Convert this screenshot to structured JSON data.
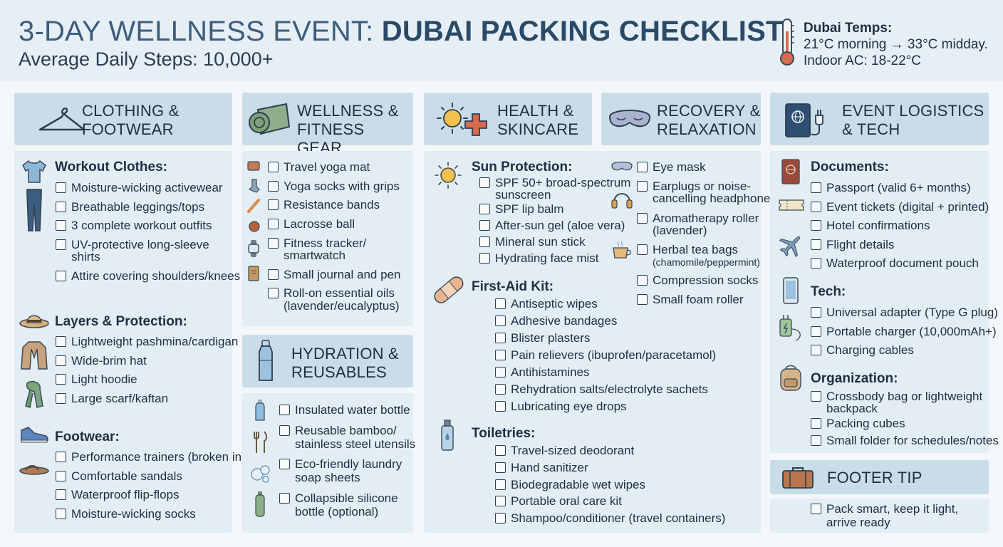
{
  "header": {
    "title_regular": "3-DAY WELLNESS EVENT: ",
    "title_bold": "DUBAI PACKING CHECKLIST",
    "subtitle": "Average Daily Steps: 10,000+",
    "temps_label": "Dubai Temps:",
    "temps_line1": "21°C morning → 33°C midday.",
    "temps_line2": "Indoor AC: 18-22°C"
  },
  "clothing": {
    "header_line1": "CLOTHING &",
    "header_line2": "FOOTWEAR",
    "workout_title": "Workout Clothes:",
    "workout_items": [
      "Moisture-wicking activewear",
      "Breathable leggings/tops",
      "3 complete workout outfits",
      "UV-protective long-sleeve",
      "shirts",
      "Attire covering shoulders/knees"
    ],
    "layers_title": "Layers & Protection:",
    "layers_items": [
      "Lightweight pashmina/cardigan",
      "Wide-brim hat",
      "Light hoodie",
      "Large scarf/kaftan"
    ],
    "footwear_title": "Footwear:",
    "footwear_items": [
      "Performance trainers (broken in)",
      "Comfortable sandals",
      "Waterproof flip-flops",
      "Moisture-wicking socks"
    ]
  },
  "wellness": {
    "header_line1": "WELLNESS &",
    "header_line2": "FITNESS GEAR",
    "items": [
      "Travel yoga mat",
      "Yoga socks with grips",
      "Resistance bands",
      "Lacrosse ball",
      "Fitness tracker/",
      "smartwatch",
      "Small journal and pen",
      "Roll-on essential oils",
      "(lavender/eucalyptus)"
    ]
  },
  "hydration": {
    "header_line1": "HYDRATION &",
    "header_line2": "REUSABLES",
    "items": [
      "Insulated water bottle",
      "Reusable bamboo/",
      "stainless steel utensils",
      "Eco-friendly laundry",
      "soap sheets",
      "Collapsible silicone",
      "bottle (optional)"
    ]
  },
  "health": {
    "header_line1": "HEALTH &",
    "header_line2": "SKINCARE",
    "sun_title": "Sun Protection:",
    "sun_items": [
      "SPF 50+ broad-spectrum",
      "sunscreen",
      "SPF lip balm",
      "After-sun gel (aloe vera)",
      "Mineral sun stick",
      "Hydrating face mist"
    ],
    "firstaid_title": "First-Aid Kit:",
    "firstaid_items": [
      "Antiseptic wipes",
      "Adhesive bandages",
      "Blister plasters",
      "Pain relievers (ibuprofen/paracetamol)",
      "Antihistamines",
      "Rehydration salts/electrolyte sachets",
      "Lubricating eye drops"
    ],
    "toiletries_title": "Toiletries:",
    "toiletries_items": [
      "Travel-sized deodorant",
      "Hand sanitizer",
      "Biodegradable wet wipes",
      "Portable oral care kit",
      "Shampoo/conditioner (travel containers)"
    ]
  },
  "recovery": {
    "header_line1": "RECOVERY &",
    "header_line2": "RELAXATION",
    "items": [
      "Eye mask",
      "Earplugs or noise-",
      "cancelling headphones",
      "Aromatherapy roller",
      "(lavender)",
      "Herbal tea bags",
      "(chamomile/peppermint)",
      "Compression socks",
      "Small foam roller"
    ]
  },
  "logistics": {
    "header_line1": "EVENT LOGISTICS",
    "header_line2": "& TECH",
    "documents_title": "Documents:",
    "documents_items": [
      "Passport (valid 6+ months)",
      "Event tickets (digital + printed)",
      "Hotel confirmations",
      "Flight details",
      "Waterproof document pouch"
    ],
    "tech_title": "Tech:",
    "tech_items": [
      "Universal adapter (Type G plug)",
      "Portable charger (10,000mAh+)",
      "Charging cables"
    ],
    "org_title": "Organization:",
    "org_items": [
      "Crossbody bag or lightweight",
      "backpack",
      "Packing cubes",
      "Small folder for schedules/notes"
    ]
  },
  "footer": {
    "header": "FOOTER TIP",
    "tip_line1": "Pack smart, keep it light,",
    "tip_line2": "arrive ready"
  }
}
